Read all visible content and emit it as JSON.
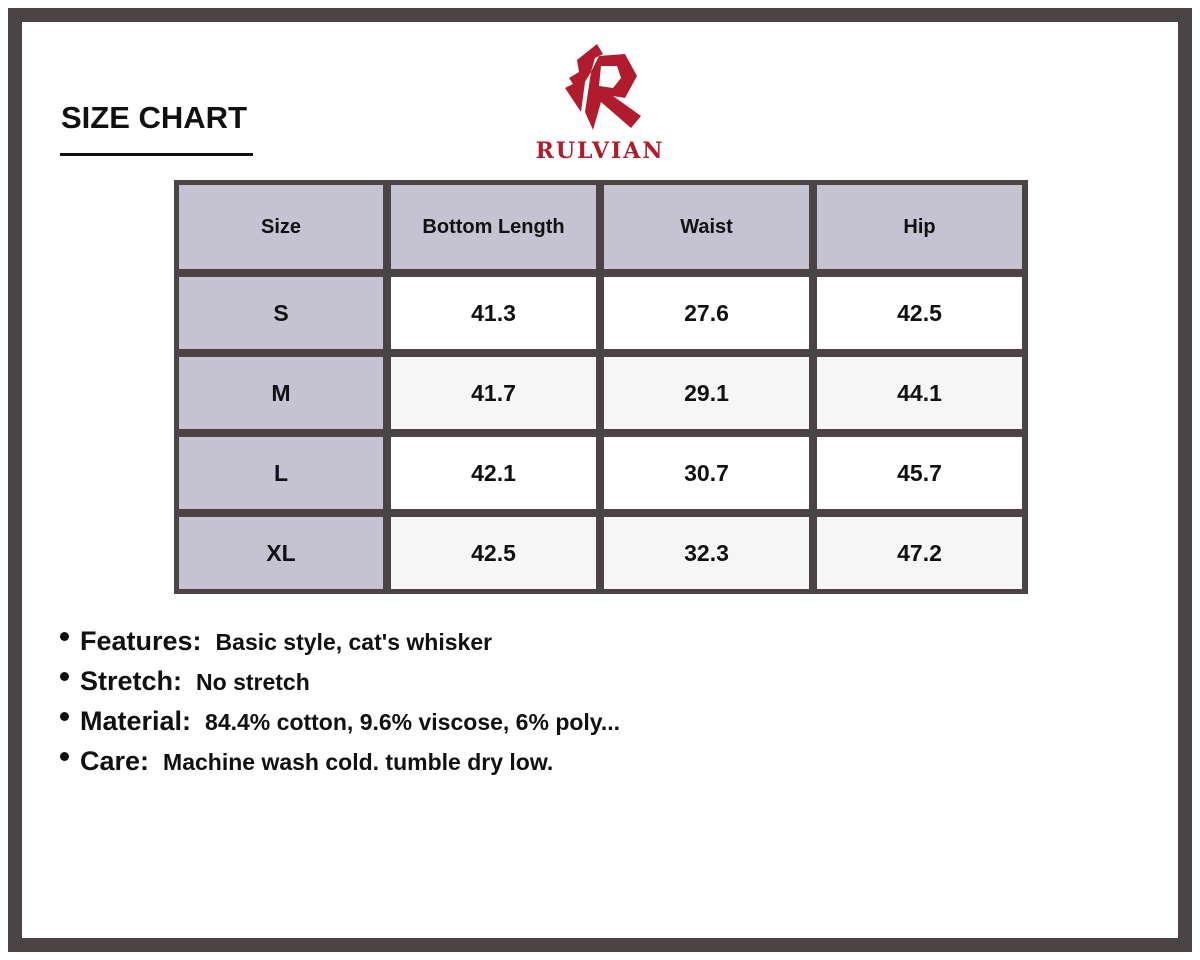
{
  "title": "SIZE CHART",
  "brand": {
    "name": "RULVIAN",
    "color": "#b01c2e",
    "logo_icon": "stylized-r-logo"
  },
  "table": {
    "headers": [
      "Size",
      "Bottom Length",
      "Waist",
      "Hip"
    ],
    "rows": [
      [
        "S",
        "41.3",
        "27.6",
        "42.5"
      ],
      [
        "M",
        "41.7",
        "29.1",
        "44.1"
      ],
      [
        "L",
        "42.1",
        "30.7",
        "45.7"
      ],
      [
        "XL",
        "42.5",
        "32.3",
        "47.2"
      ]
    ]
  },
  "notes": [
    {
      "label": "Features:",
      "text": "Basic style, cat's whisker"
    },
    {
      "label": "Stretch:",
      "text": "No stretch"
    },
    {
      "label": "Material:",
      "text": "84.4% cotton, 9.6% viscose, 6% poly..."
    },
    {
      "label": "Care:",
      "text": "Machine wash cold. tumble dry low."
    }
  ],
  "colors": {
    "frame": "#4a4444",
    "header_bg": "#c5c3d1",
    "accent": "#b01c2e"
  }
}
